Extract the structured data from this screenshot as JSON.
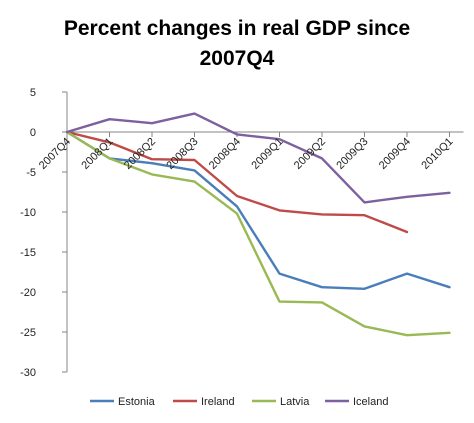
{
  "chart_data": {
    "type": "line",
    "title_lines": [
      "Percent changes in real GDP since",
      "2007Q4"
    ],
    "xlabel": "",
    "ylabel": "",
    "ylim": [
      -30,
      5
    ],
    "yticks": [
      5,
      0,
      -5,
      -10,
      -15,
      -20,
      -25,
      -30
    ],
    "categories": [
      "2007Q4",
      "2008Q1",
      "2008Q2",
      "2008Q3",
      "2008Q4",
      "2009Q1",
      "2009Q2",
      "2009Q3",
      "2009Q4",
      "2010Q1"
    ],
    "grid": false,
    "legend_position": "bottom",
    "series": [
      {
        "name": "Estonia",
        "color": "#4a7ebb",
        "values": [
          0,
          -3.3,
          -3.9,
          -4.8,
          -9.3,
          -17.7,
          -19.4,
          -19.6,
          -17.7,
          -19.4
        ]
      },
      {
        "name": "Ireland",
        "color": "#be4b48",
        "values": [
          0,
          -1.3,
          -3.4,
          -3.5,
          -8.0,
          -9.8,
          -10.3,
          -10.4,
          -12.5,
          null
        ]
      },
      {
        "name": "Latvia",
        "color": "#98b954",
        "values": [
          0,
          -3.3,
          -5.3,
          -6.2,
          -10.2,
          -21.2,
          -21.3,
          -24.3,
          -25.4,
          -25.1
        ]
      },
      {
        "name": "Iceland",
        "color": "#7d60a0",
        "values": [
          0,
          1.6,
          1.1,
          2.3,
          -0.3,
          -0.9,
          -3.3,
          -8.8,
          -8.1,
          -7.6
        ]
      }
    ]
  }
}
